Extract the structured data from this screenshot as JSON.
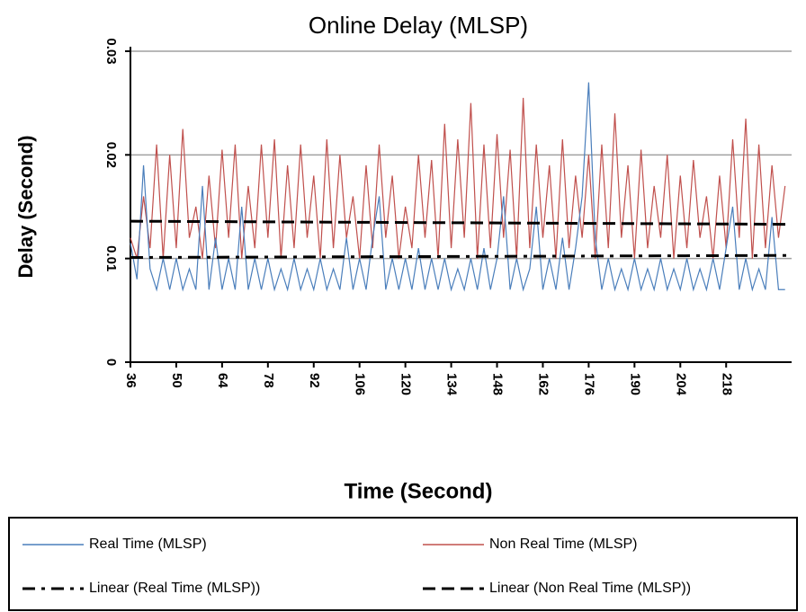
{
  "chart_data": {
    "type": "line",
    "title": "Online Delay (MLSP)",
    "xlabel": "Time (Second)",
    "ylabel": "Delay (Second)",
    "xlim": [
      36,
      238
    ],
    "xticks": [
      36,
      50,
      64,
      78,
      92,
      106,
      120,
      134,
      148,
      162,
      176,
      190,
      204,
      218
    ],
    "ylim": [
      0,
      0.03
    ],
    "yticks": [
      0,
      0.01,
      0.02,
      0.03
    ],
    "grid": true,
    "x": [
      36,
      38,
      40,
      42,
      44,
      46,
      48,
      50,
      52,
      54,
      56,
      58,
      60,
      62,
      64,
      66,
      68,
      70,
      72,
      74,
      76,
      78,
      80,
      82,
      84,
      86,
      88,
      90,
      92,
      94,
      96,
      98,
      100,
      102,
      104,
      106,
      108,
      110,
      112,
      114,
      116,
      118,
      120,
      122,
      124,
      126,
      128,
      130,
      132,
      134,
      136,
      138,
      140,
      142,
      144,
      146,
      148,
      150,
      152,
      154,
      156,
      158,
      160,
      162,
      164,
      166,
      168,
      170,
      172,
      174,
      176,
      178,
      180,
      182,
      184,
      186,
      188,
      190,
      192,
      194,
      196,
      198,
      200,
      202,
      204,
      206,
      208,
      210,
      212,
      214,
      216,
      218,
      220,
      222,
      224,
      226,
      228,
      230,
      232,
      234,
      236
    ],
    "series": [
      {
        "name": "Non Real Time (MLSP)",
        "color": "#c0504d",
        "dash": "dotted-solid",
        "values": [
          0.012,
          0.01,
          0.016,
          0.011,
          0.021,
          0.01,
          0.02,
          0.011,
          0.0225,
          0.012,
          0.015,
          0.01,
          0.018,
          0.011,
          0.0205,
          0.012,
          0.021,
          0.01,
          0.017,
          0.011,
          0.021,
          0.012,
          0.0215,
          0.01,
          0.019,
          0.011,
          0.021,
          0.012,
          0.018,
          0.01,
          0.0215,
          0.011,
          0.02,
          0.012,
          0.016,
          0.01,
          0.019,
          0.011,
          0.021,
          0.012,
          0.018,
          0.01,
          0.015,
          0.011,
          0.02,
          0.012,
          0.0195,
          0.01,
          0.023,
          0.011,
          0.0215,
          0.012,
          0.025,
          0.01,
          0.021,
          0.011,
          0.022,
          0.012,
          0.0205,
          0.01,
          0.0255,
          0.011,
          0.021,
          0.012,
          0.019,
          0.01,
          0.0215,
          0.011,
          0.018,
          0.012,
          0.02,
          0.01,
          0.021,
          0.011,
          0.024,
          0.012,
          0.019,
          0.01,
          0.0205,
          0.011,
          0.017,
          0.012,
          0.02,
          0.01,
          0.018,
          0.011,
          0.0195,
          0.012,
          0.016,
          0.01,
          0.018,
          0.011,
          0.0215,
          0.012,
          0.0235,
          0.01,
          0.021,
          0.011,
          0.019,
          0.012,
          0.017
        ]
      },
      {
        "name": "Real Time (MLSP)",
        "color": "#4a7ebb",
        "dash": "solid",
        "values": [
          0.0115,
          0.008,
          0.019,
          0.009,
          0.007,
          0.01,
          0.007,
          0.01,
          0.007,
          0.009,
          0.007,
          0.017,
          0.007,
          0.012,
          0.007,
          0.01,
          0.007,
          0.015,
          0.007,
          0.01,
          0.007,
          0.01,
          0.007,
          0.009,
          0.007,
          0.01,
          0.007,
          0.009,
          0.007,
          0.01,
          0.007,
          0.009,
          0.007,
          0.012,
          0.007,
          0.01,
          0.007,
          0.012,
          0.016,
          0.007,
          0.01,
          0.007,
          0.01,
          0.007,
          0.011,
          0.007,
          0.01,
          0.007,
          0.01,
          0.007,
          0.009,
          0.007,
          0.01,
          0.007,
          0.011,
          0.007,
          0.01,
          0.016,
          0.007,
          0.01,
          0.007,
          0.009,
          0.015,
          0.007,
          0.01,
          0.007,
          0.012,
          0.007,
          0.011,
          0.016,
          0.027,
          0.012,
          0.007,
          0.01,
          0.007,
          0.009,
          0.007,
          0.01,
          0.007,
          0.009,
          0.007,
          0.01,
          0.007,
          0.009,
          0.007,
          0.01,
          0.007,
          0.009,
          0.007,
          0.01,
          0.007,
          0.011,
          0.015,
          0.007,
          0.01,
          0.007,
          0.009,
          0.007,
          0.014,
          0.007,
          0.007
        ]
      }
    ],
    "trendlines": [
      {
        "name": "Linear (Real Time (MLSP))",
        "color": "#000000",
        "dash": "dash-dot",
        "x": [
          36,
          238
        ],
        "values": [
          0.0101,
          0.0103
        ]
      },
      {
        "name": "Linear (Non Real Time (MLSP))",
        "color": "#000000",
        "dash": "dashed",
        "x": [
          36,
          238
        ],
        "values": [
          0.0136,
          0.0133
        ]
      }
    ],
    "legend": "bottom"
  }
}
